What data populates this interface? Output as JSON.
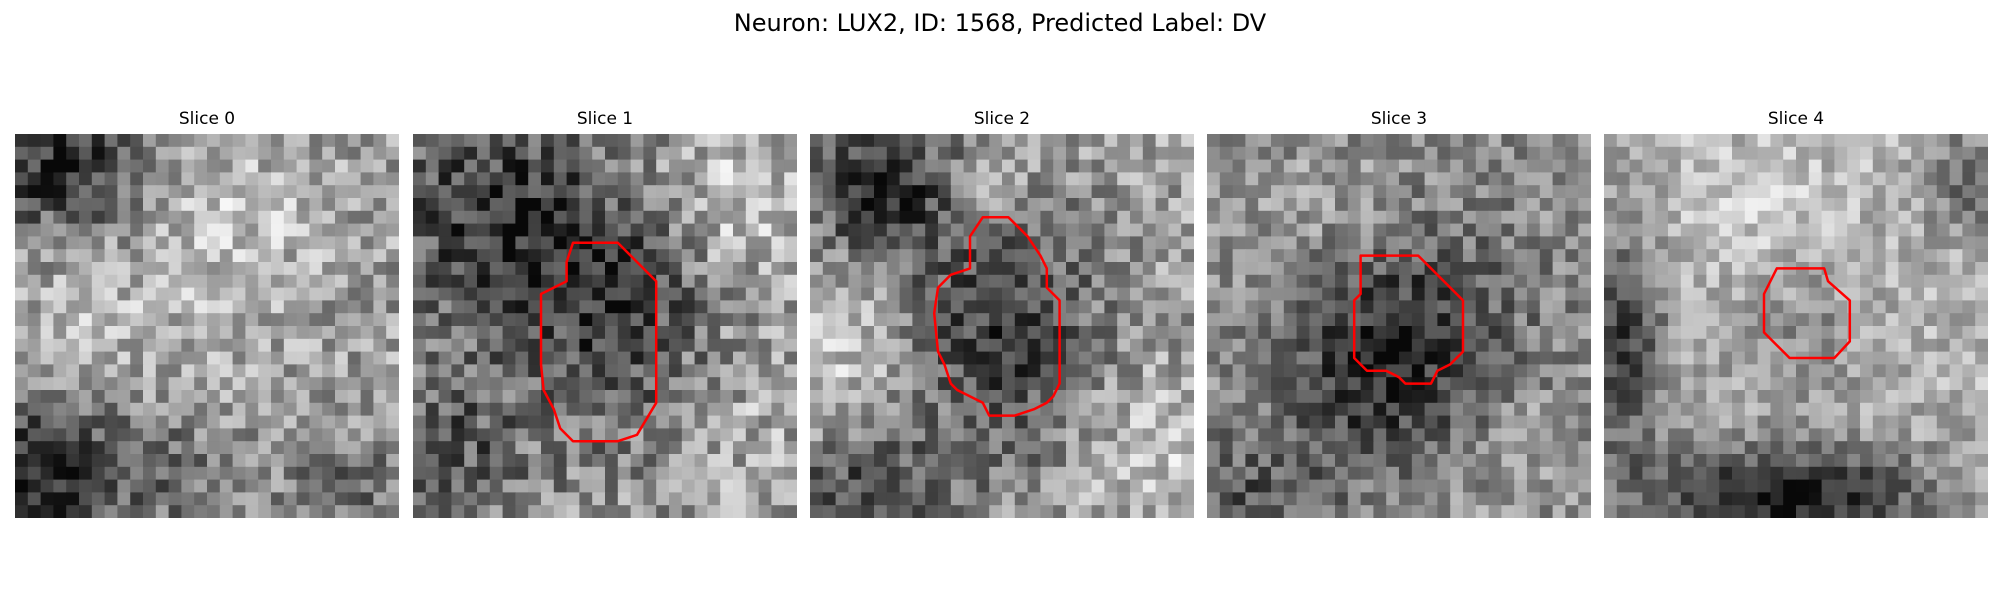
{
  "figure": {
    "title": "Neuron: LUX2, ID: 1568, Predicted Label: DV",
    "contour_color": "#ff0000"
  },
  "slices": [
    {
      "title": "Slice 0"
    },
    {
      "title": "Slice 1"
    },
    {
      "title": "Slice 2"
    },
    {
      "title": "Slice 3"
    },
    {
      "title": "Slice 4"
    }
  ]
}
